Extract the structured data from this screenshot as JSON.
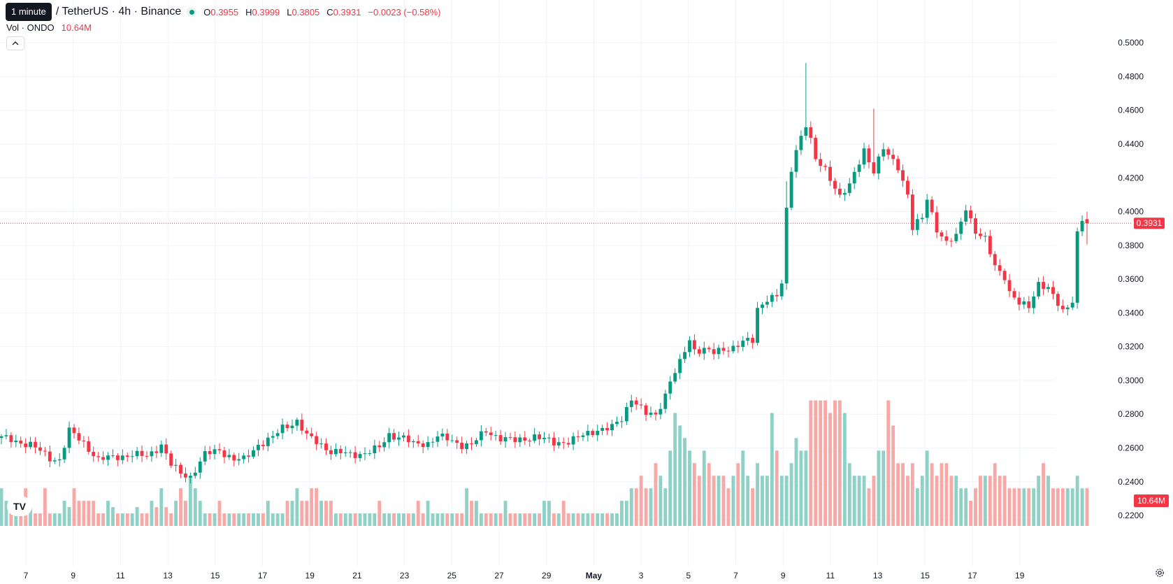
{
  "legend": {
    "interval_tooltip": "1 minute",
    "symbol": "/ TetherUS · 4h · Binance",
    "o_label": "O",
    "o_value": "0.3955",
    "h_label": "H",
    "h_value": "0.3999",
    "l_label": "L",
    "l_value": "0.3805",
    "c_label": "C",
    "c_value": "0.3931",
    "change": "−0.0023 (−0.58%)"
  },
  "volume_legend": {
    "label": "Vol · ONDO",
    "value": "10.64M"
  },
  "collapse_icon": "chevron-up-icon",
  "logo_text": "TV",
  "settings_icon": "gear-icon",
  "colors": {
    "up": "#089981",
    "down": "#f23645",
    "up_vol": "#8fd1c6",
    "down_vol": "#f7a9a7",
    "grid": "#f0f3fa",
    "text": "#131722"
  },
  "chart_data": {
    "type": "candlestick",
    "x_tick_labels": [
      "7",
      "9",
      "11",
      "13",
      "15",
      "17",
      "19",
      "21",
      "23",
      "25",
      "27",
      "29",
      "May",
      "3",
      "5",
      "7",
      "9",
      "11",
      "13",
      "15",
      "17",
      "19"
    ],
    "y_tick_labels": [
      "0.5000",
      "0.4800",
      "0.4600",
      "0.4400",
      "0.4200",
      "0.4000",
      "0.3800",
      "0.3600",
      "0.3400",
      "0.3200",
      "0.3000",
      "0.2800",
      "0.2600",
      "0.2400",
      "0.2200"
    ],
    "ylim": [
      0.2167,
      0.5067
    ],
    "last_price": "0.3931",
    "last_volume": "10.64M",
    "grid": true,
    "close_path": [
      [
        0,
        0.266
      ],
      [
        6,
        0.262
      ],
      [
        10,
        0.254
      ],
      [
        12,
        0.253
      ],
      [
        14,
        0.27
      ],
      [
        17,
        0.263
      ],
      [
        20,
        0.253
      ],
      [
        24,
        0.255
      ],
      [
        27,
        0.256
      ],
      [
        30,
        0.255
      ],
      [
        33,
        0.262
      ],
      [
        35,
        0.25
      ],
      [
        37,
        0.245
      ],
      [
        39,
        0.243
      ],
      [
        42,
        0.256
      ],
      [
        45,
        0.259
      ],
      [
        48,
        0.253
      ],
      [
        50,
        0.253
      ],
      [
        53,
        0.262
      ],
      [
        56,
        0.266
      ],
      [
        58,
        0.272
      ],
      [
        61,
        0.276
      ],
      [
        63,
        0.267
      ],
      [
        66,
        0.262
      ],
      [
        68,
        0.258
      ],
      [
        72,
        0.256
      ],
      [
        75,
        0.257
      ],
      [
        78,
        0.26
      ],
      [
        80,
        0.268
      ],
      [
        83,
        0.266
      ],
      [
        85,
        0.262
      ],
      [
        88,
        0.263
      ],
      [
        90,
        0.267
      ],
      [
        93,
        0.264
      ],
      [
        95,
        0.262
      ],
      [
        97,
        0.262
      ],
      [
        100,
        0.27
      ],
      [
        103,
        0.266
      ],
      [
        106,
        0.264
      ],
      [
        110,
        0.267
      ],
      [
        114,
        0.263
      ],
      [
        117,
        0.264
      ],
      [
        119,
        0.266
      ],
      [
        123,
        0.271
      ],
      [
        126,
        0.272
      ],
      [
        128,
        0.277
      ],
      [
        130,
        0.29
      ],
      [
        133,
        0.28
      ],
      [
        135,
        0.279
      ],
      [
        137,
        0.292
      ],
      [
        138,
        0.3
      ],
      [
        140,
        0.31
      ],
      [
        141,
        0.317
      ],
      [
        142,
        0.324
      ],
      [
        143,
        0.318
      ],
      [
        145,
        0.319
      ],
      [
        147,
        0.316
      ],
      [
        149,
        0.318
      ],
      [
        151,
        0.32
      ],
      [
        153,
        0.323
      ],
      [
        155,
        0.323
      ],
      [
        156,
        0.342
      ],
      [
        158,
        0.349
      ],
      [
        160,
        0.35
      ],
      [
        161,
        0.357
      ],
      [
        162,
        0.4
      ],
      [
        163,
        0.425
      ],
      [
        164,
        0.437
      ],
      [
        165,
        0.445
      ],
      [
        166,
        0.452
      ],
      [
        167,
        0.442
      ],
      [
        168,
        0.43
      ],
      [
        170,
        0.425
      ],
      [
        172,
        0.415
      ],
      [
        173,
        0.409
      ],
      [
        175,
        0.415
      ],
      [
        176,
        0.422
      ],
      [
        178,
        0.437
      ],
      [
        180,
        0.424
      ],
      [
        182,
        0.437
      ],
      [
        183,
        0.433
      ],
      [
        185,
        0.427
      ],
      [
        187,
        0.41
      ],
      [
        188,
        0.39
      ],
      [
        190,
        0.396
      ],
      [
        191,
        0.408
      ],
      [
        193,
        0.39
      ],
      [
        195,
        0.381
      ],
      [
        197,
        0.385
      ],
      [
        199,
        0.403
      ],
      [
        201,
        0.388
      ],
      [
        203,
        0.383
      ],
      [
        205,
        0.368
      ],
      [
        207,
        0.362
      ],
      [
        208,
        0.352
      ],
      [
        210,
        0.345
      ],
      [
        212,
        0.344
      ],
      [
        214,
        0.358
      ],
      [
        216,
        0.354
      ],
      [
        218,
        0.345
      ],
      [
        219,
        0.341
      ],
      [
        221,
        0.348
      ],
      [
        222,
        0.387
      ],
      [
        223,
        0.395
      ],
      [
        224,
        0.3931
      ]
    ],
    "volume_levels": [
      0.3,
      0.2,
      0.2,
      0.2,
      0.1,
      0.3,
      0.15,
      0.1,
      0.1,
      0.3,
      0.1,
      0.1,
      0.1,
      0.2,
      0.15,
      0.3,
      0.2,
      0.2,
      0.2,
      0.2,
      0.1,
      0.1,
      0.2,
      0.15,
      0.1,
      0.1,
      0.1,
      0.1,
      0.15,
      0.1,
      0.1,
      0.2,
      0.15,
      0.3,
      0.15,
      0.1,
      0.2,
      0.3,
      0.2,
      0.4,
      0.3,
      0.2,
      0.1,
      0.1,
      0.1,
      0.2,
      0.1,
      0.1,
      0.1,
      0.1,
      0.1,
      0.1,
      0.1,
      0.1,
      0.1,
      0.2,
      0.1,
      0.1,
      0.1,
      0.2,
      0.2,
      0.3,
      0.2,
      0.2,
      0.3,
      0.3,
      0.2,
      0.2,
      0.2,
      0.1,
      0.1,
      0.1,
      0.1,
      0.1,
      0.1,
      0.1,
      0.1,
      0.1,
      0.2,
      0.1,
      0.1,
      0.1,
      0.1,
      0.1,
      0.1,
      0.1,
      0.2,
      0.1,
      0.2,
      0.1,
      0.1,
      0.1,
      0.1,
      0.1,
      0.1,
      0.1,
      0.3,
      0.2,
      0.2,
      0.1,
      0.1,
      0.1,
      0.1,
      0.1,
      0.2,
      0.1,
      0.1,
      0.1,
      0.1,
      0.1,
      0.1,
      0.1,
      0.2,
      0.2,
      0.1,
      0.1,
      0.2,
      0.1,
      0.1,
      0.1,
      0.1,
      0.1,
      0.1,
      0.1,
      0.1,
      0.1,
      0.1,
      0.1,
      0.2,
      0.2,
      0.3,
      0.3,
      0.4,
      0.3,
      0.3,
      0.5,
      0.4,
      0.3,
      0.6,
      0.9,
      0.8,
      0.7,
      0.6,
      0.5,
      0.4,
      0.6,
      0.5,
      0.4,
      0.4,
      0.4,
      0.3,
      0.4,
      0.5,
      0.6,
      0.4,
      0.3,
      0.5,
      0.4,
      0.4,
      0.9,
      0.6,
      0.4,
      0.4,
      0.5,
      0.7,
      0.6,
      0.6,
      1.0,
      1.0,
      1.0,
      1.0,
      0.9,
      1.0,
      1.0,
      0.9,
      0.5,
      0.4,
      0.4,
      0.4,
      0.3,
      0.4,
      0.6,
      0.6,
      1.0,
      0.8,
      0.5,
      0.5,
      0.4,
      0.5,
      0.3,
      0.4,
      0.6,
      0.5,
      0.4,
      0.5,
      0.5,
      0.4,
      0.4,
      0.3,
      0.3,
      0.2,
      0.3,
      0.4,
      0.4,
      0.4,
      0.5,
      0.4,
      0.4,
      0.3,
      0.3,
      0.3,
      0.3,
      0.3,
      0.3,
      0.4,
      0.5,
      0.4,
      0.3,
      0.3,
      0.3,
      0.3,
      0.3,
      0.4,
      0.3,
      0.3,
      0.3,
      0.3,
      0.3,
      0.3,
      0.3,
      0.4,
      0.3,
      0.3,
      0.3,
      0.3,
      0.3,
      0.3,
      0.6,
      0.6,
      0.3
    ]
  }
}
